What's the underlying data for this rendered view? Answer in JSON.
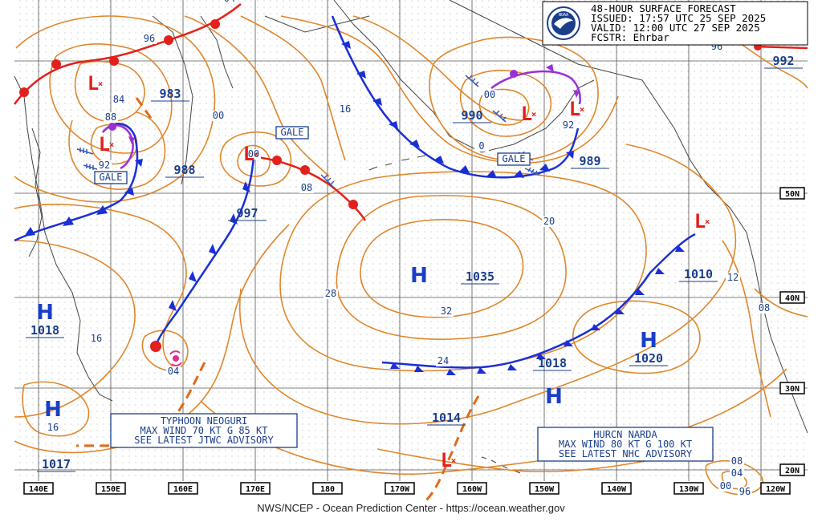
{
  "header": {
    "line1": "48-HOUR SURFACE FORECAST",
    "issued": "ISSUED: 17:57 UTC 25 SEP 2025",
    "valid": "VALID:  12:00 UTC 27 SEP 2025",
    "forecaster": "FCSTR:  Ehrbar"
  },
  "logo_text": "NOAA",
  "footer": "NWS/NCEP - Ocean Prediction Center - https://ocean.weather.gov",
  "longitude_labels": [
    "140E",
    "150E",
    "160E",
    "170E",
    "180",
    "170W",
    "160W",
    "150W",
    "140W",
    "130W",
    "120W"
  ],
  "latitude_labels": [
    "50N",
    "40N",
    "30N",
    "20N"
  ],
  "pressure_labels": [
    "983",
    "988",
    "997",
    "990",
    "989",
    "992",
    "1035",
    "1010",
    "1018",
    "1018",
    "1020",
    "1014",
    "1017"
  ],
  "isobar_labels": [
    "84",
    "88",
    "92",
    "00",
    "16",
    "08",
    "00",
    "28",
    "32",
    "24",
    "20",
    "12",
    "08",
    "16",
    "16",
    "04",
    "96",
    "96",
    "00",
    "92",
    "0",
    "00",
    "04",
    "08",
    "96",
    "04"
  ],
  "systems": {
    "high": "H",
    "low": "L"
  },
  "gale_warnings": [
    "GALE",
    "GALE",
    "GALE"
  ],
  "advisories": {
    "typhoon": [
      "TYPHOON NEOGURI",
      "MAX WIND 70 KT G 85 KT",
      "SEE LATEST JTWC ADVISORY"
    ],
    "hurricane": [
      "HURCN NARDA",
      "MAX WIND 80 KT G 100 KT",
      "SEE LATEST NHC ADVISORY"
    ]
  },
  "colors": {
    "isobar": "#e0862a",
    "cold_front": "#1a2fd6",
    "warm_front": "#e3201b",
    "occluded_front": "#9b2fd6",
    "high": "#1a3ec8",
    "low": "#e3201b",
    "land": "#444444",
    "grid": "#555555"
  }
}
